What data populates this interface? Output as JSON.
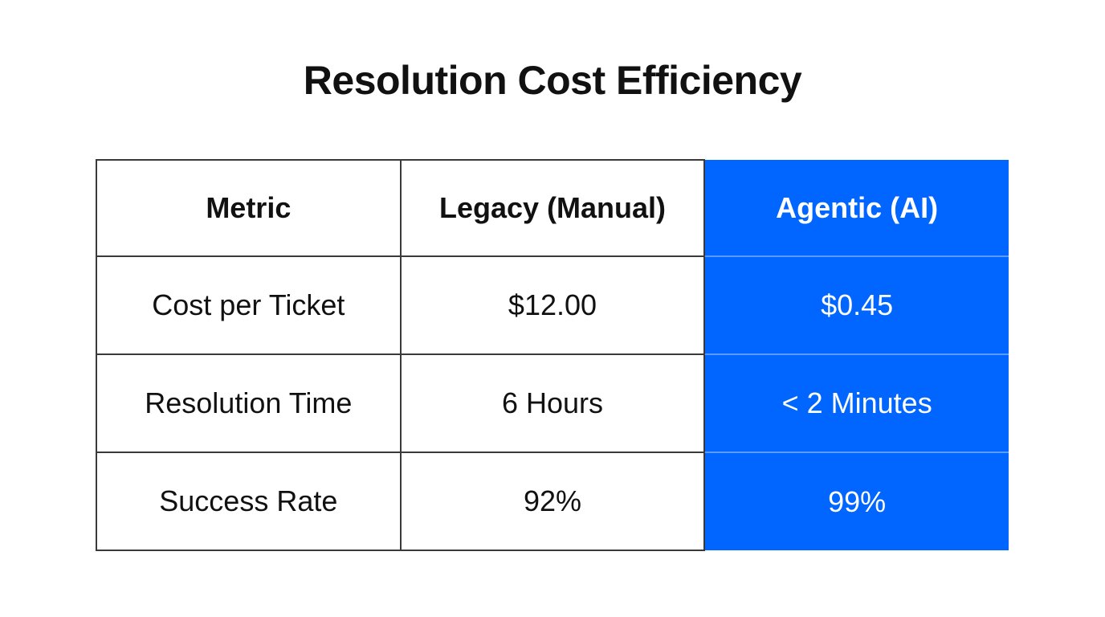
{
  "title": "Resolution Cost Efficiency",
  "colors": {
    "agentic_bg": "#0066ff",
    "border": "#3a3a3a",
    "text": "#111111"
  },
  "chart_data": {
    "type": "table",
    "title": "Resolution Cost Efficiency",
    "columns": [
      "Metric",
      "Legacy (Manual)",
      "Agentic (AI)"
    ],
    "rows": [
      [
        "Cost per Ticket",
        "$12.00",
        "$0.45"
      ],
      [
        "Resolution Time",
        "6 Hours",
        "< 2 Minutes"
      ],
      [
        "Success Rate",
        "92%",
        "99%"
      ]
    ],
    "highlighted_column": "Agentic (AI)"
  }
}
